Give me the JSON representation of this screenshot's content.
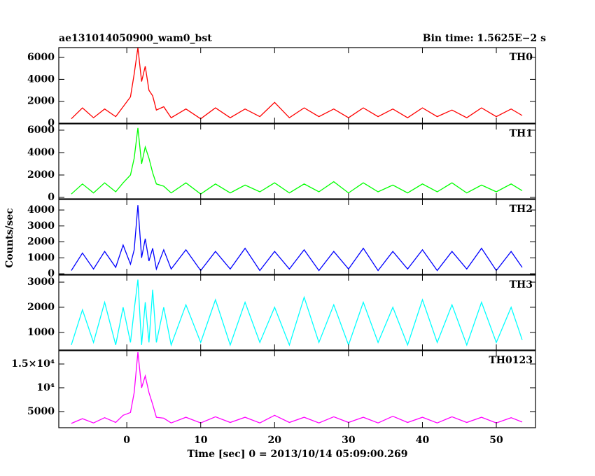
{
  "chart_data": [
    {
      "type": "line",
      "title": "ae131014050900_wam0_bst",
      "annotation": "Bin time: 1.5625E−2 s",
      "ylabel": "Counts/sec",
      "panel_label": "TH0",
      "color": "#ff0000",
      "x": [
        -7.5,
        -6,
        -4.5,
        -3,
        -1.5,
        -0.5,
        0.5,
        1,
        1.5,
        2,
        2.5,
        3,
        3.5,
        4,
        5,
        6,
        8,
        10,
        12,
        14,
        16,
        18,
        20,
        22,
        24,
        26,
        28,
        30,
        32,
        34,
        36,
        38,
        40,
        42,
        44,
        46,
        48,
        50,
        52,
        53.5
      ],
      "values": [
        400,
        1400,
        500,
        1300,
        600,
        1500,
        2400,
        4500,
        6900,
        3800,
        5200,
        3000,
        2500,
        1200,
        1500,
        500,
        1300,
        400,
        1400,
        500,
        1300,
        600,
        1900,
        500,
        1400,
        600,
        1300,
        500,
        1400,
        600,
        1300,
        500,
        1400,
        600,
        1200,
        500,
        1400,
        600,
        1300,
        700
      ],
      "xlim": [
        -9.2,
        55.3
      ],
      "xticks": [
        0,
        10,
        20,
        30,
        40,
        50
      ],
      "ylim": [
        0,
        6900
      ],
      "yticks": [
        0,
        2000,
        4000,
        6000
      ]
    },
    {
      "type": "line",
      "panel_label": "TH1",
      "color": "#00ff00",
      "x": [
        -7.5,
        -6,
        -4.5,
        -3,
        -1.5,
        -0.5,
        0.5,
        1,
        1.5,
        2,
        2.5,
        3,
        3.5,
        4,
        5,
        6,
        8,
        10,
        12,
        14,
        16,
        18,
        20,
        22,
        24,
        26,
        28,
        30,
        32,
        34,
        36,
        38,
        40,
        42,
        44,
        46,
        48,
        50,
        52,
        53.5
      ],
      "values": [
        300,
        1200,
        400,
        1300,
        500,
        1300,
        2000,
        3500,
        6200,
        3000,
        4500,
        3500,
        2200,
        1200,
        1000,
        400,
        1300,
        300,
        1200,
        400,
        1100,
        500,
        1300,
        400,
        1200,
        500,
        1400,
        400,
        1300,
        500,
        1100,
        400,
        1200,
        500,
        1300,
        400,
        1100,
        500,
        1200,
        600
      ],
      "xlim": [
        -9.2,
        55.3
      ],
      "xticks": [
        0,
        10,
        20,
        30,
        40,
        50
      ],
      "ylim": [
        -125,
        6560
      ],
      "yticks": [
        0,
        2000,
        4000,
        6000
      ]
    },
    {
      "type": "line",
      "panel_label": "TH2",
      "color": "#0000ff",
      "x": [
        -7.5,
        -6,
        -4.5,
        -3,
        -1.5,
        -0.5,
        0.5,
        1,
        1.5,
        2,
        2.5,
        3,
        3.5,
        4,
        5,
        6,
        8,
        10,
        12,
        14,
        16,
        18,
        20,
        22,
        24,
        26,
        28,
        30,
        32,
        34,
        36,
        38,
        40,
        42,
        44,
        46,
        48,
        50,
        52,
        53.5
      ],
      "values": [
        200,
        1300,
        300,
        1400,
        400,
        1800,
        600,
        1500,
        4300,
        1000,
        2200,
        800,
        1600,
        300,
        1500,
        300,
        1500,
        200,
        1400,
        300,
        1600,
        200,
        1400,
        300,
        1500,
        200,
        1400,
        300,
        1600,
        200,
        1400,
        300,
        1500,
        200,
        1400,
        300,
        1600,
        200,
        1400,
        400
      ],
      "xlim": [
        -9.2,
        55.3
      ],
      "xticks": [
        0,
        10,
        20,
        30,
        40,
        50
      ],
      "ylim": [
        -40,
        4660
      ],
      "yticks": [
        0,
        1000,
        2000,
        3000,
        4000
      ]
    },
    {
      "type": "line",
      "panel_label": "TH3",
      "color": "#00ffff",
      "x": [
        -7.5,
        -6,
        -4.5,
        -3,
        -1.5,
        -0.5,
        0.5,
        1,
        1.5,
        2,
        2.5,
        3,
        3.5,
        4,
        5,
        6,
        8,
        10,
        12,
        14,
        16,
        18,
        20,
        22,
        24,
        26,
        28,
        30,
        32,
        34,
        36,
        38,
        40,
        42,
        44,
        46,
        48,
        50,
        52,
        53.5
      ],
      "values": [
        500,
        1900,
        600,
        2200,
        500,
        2000,
        600,
        1900,
        3100,
        500,
        2200,
        600,
        2700,
        600,
        2000,
        500,
        2100,
        600,
        2300,
        500,
        2200,
        600,
        2000,
        500,
        2400,
        600,
        2100,
        500,
        2200,
        600,
        2000,
        500,
        2300,
        600,
        2100,
        500,
        2200,
        600,
        2000,
        700
      ],
      "xlim": [
        -9.2,
        55.3
      ],
      "xticks": [
        0,
        10,
        20,
        30,
        40,
        50
      ],
      "ylim": [
        300,
        3280
      ],
      "yticks": [
        1000,
        2000,
        3000
      ]
    },
    {
      "type": "line",
      "panel_label": "TH0123",
      "color": "#ff00ff",
      "xlabel": "Time [sec] 0 = 2013/10/14 05:09:00.269",
      "x": [
        -7.5,
        -6,
        -4.5,
        -3,
        -1.5,
        -0.5,
        0.5,
        1,
        1.5,
        2,
        2.5,
        3,
        3.5,
        4,
        5,
        6,
        8,
        10,
        12,
        14,
        16,
        18,
        20,
        22,
        24,
        26,
        28,
        30,
        32,
        34,
        36,
        38,
        40,
        42,
        44,
        46,
        48,
        50,
        52,
        53.5
      ],
      "values": [
        2500,
        3500,
        2600,
        3700,
        2700,
        4200,
        4800,
        9000,
        17500,
        10000,
        12500,
        9000,
        6500,
        3800,
        3600,
        2600,
        3800,
        2600,
        3900,
        2700,
        3800,
        2600,
        4200,
        2700,
        3800,
        2600,
        3900,
        2700,
        3800,
        2600,
        4000,
        2700,
        3800,
        2600,
        3900,
        2700,
        3800,
        2600,
        3700,
        2800
      ],
      "xlim": [
        -9.2,
        55.3
      ],
      "xticks": [
        0,
        10,
        20,
        30,
        40,
        50
      ],
      "ylim": [
        1600,
        17800
      ],
      "yticks": [
        5000,
        {
          "value": 10000,
          "label": "10⁴"
        },
        {
          "value": 15000,
          "label": "1.5×10⁴"
        }
      ]
    }
  ]
}
